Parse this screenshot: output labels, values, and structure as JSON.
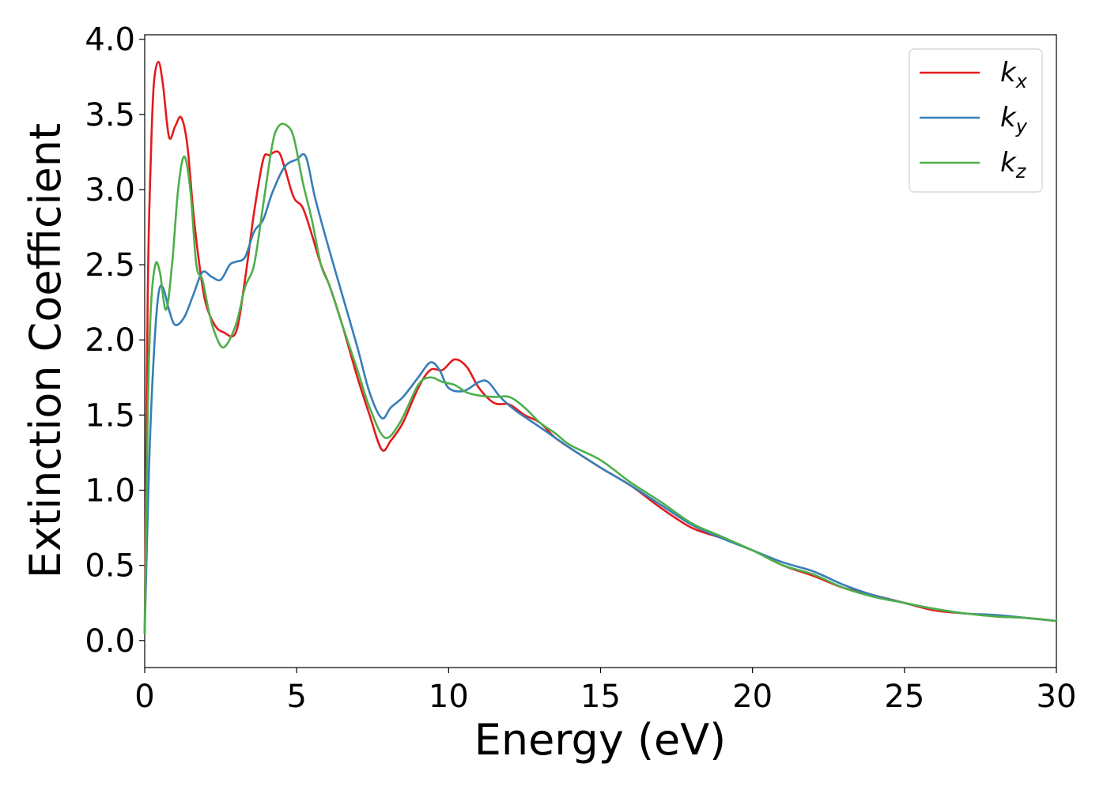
{
  "chart_data": {
    "type": "line",
    "xlabel": "Energy (eV)",
    "ylabel": "Extinction Coefficient",
    "xlim": [
      0,
      30
    ],
    "ylim": [
      -0.18,
      4.03
    ],
    "xticks": [
      0,
      5,
      10,
      15,
      20,
      25,
      30
    ],
    "xtick_labels": [
      "0",
      "5",
      "10",
      "15",
      "20",
      "25",
      "30"
    ],
    "yticks": [
      0.0,
      0.5,
      1.0,
      1.5,
      2.0,
      2.5,
      3.0,
      3.5,
      4.0
    ],
    "ytick_labels": [
      "0.0",
      "0.5",
      "1.0",
      "1.5",
      "2.0",
      "2.5",
      "3.0",
      "3.5",
      "4.0"
    ],
    "grid": false,
    "legend_position": "top-right",
    "series": [
      {
        "name": "k_x",
        "label_base": "k",
        "label_sub": "x",
        "color": "#e41a1c",
        "x": [
          0,
          0.1,
          0.2,
          0.3,
          0.45,
          0.6,
          0.8,
          1.0,
          1.2,
          1.4,
          1.6,
          1.8,
          2.0,
          2.3,
          2.6,
          3.0,
          3.3,
          3.6,
          3.9,
          4.1,
          4.4,
          4.6,
          4.9,
          5.2,
          5.5,
          5.8,
          6.1,
          6.5,
          7.0,
          7.4,
          7.8,
          8.1,
          8.5,
          9.0,
          9.4,
          9.8,
          10.2,
          10.6,
          11.0,
          11.5,
          12.0,
          12.5,
          13.0,
          13.5,
          14.0,
          15.0,
          16.0,
          17.0,
          18.0,
          19.0,
          20.0,
          21.0,
          22.0,
          23.0,
          24.0,
          25.0,
          26.0,
          27.0,
          28.0,
          29.0,
          30.0
        ],
        "y": [
          0.05,
          2.3,
          3.2,
          3.7,
          3.85,
          3.7,
          3.35,
          3.42,
          3.48,
          3.3,
          2.85,
          2.5,
          2.25,
          2.1,
          2.05,
          2.05,
          2.4,
          2.85,
          3.2,
          3.23,
          3.25,
          3.15,
          2.95,
          2.88,
          2.7,
          2.5,
          2.35,
          2.1,
          1.75,
          1.5,
          1.27,
          1.33,
          1.45,
          1.68,
          1.8,
          1.8,
          1.87,
          1.82,
          1.68,
          1.58,
          1.57,
          1.5,
          1.45,
          1.35,
          1.28,
          1.15,
          1.03,
          0.88,
          0.75,
          0.68,
          0.6,
          0.5,
          0.43,
          0.35,
          0.3,
          0.25,
          0.2,
          0.18,
          0.16,
          0.15,
          0.13
        ]
      },
      {
        "name": "k_y",
        "label_base": "k",
        "label_sub": "y",
        "color": "#377eb8",
        "x": [
          0,
          0.15,
          0.3,
          0.45,
          0.6,
          0.8,
          1.0,
          1.3,
          1.6,
          1.9,
          2.2,
          2.5,
          2.8,
          3.0,
          3.3,
          3.6,
          3.9,
          4.2,
          4.6,
          5.0,
          5.3,
          5.6,
          6.0,
          6.5,
          7.0,
          7.4,
          7.8,
          8.1,
          8.5,
          9.0,
          9.4,
          9.7,
          10.0,
          10.5,
          11.0,
          11.3,
          11.7,
          12.2,
          13.0,
          14.0,
          15.0,
          16.0,
          17.0,
          18.0,
          19.0,
          20.0,
          21.0,
          22.0,
          23.0,
          24.0,
          25.0,
          26.0,
          27.0,
          28.0,
          29.0,
          30.0
        ],
        "y": [
          0.05,
          1.2,
          1.9,
          2.3,
          2.35,
          2.2,
          2.1,
          2.15,
          2.3,
          2.45,
          2.42,
          2.4,
          2.5,
          2.52,
          2.55,
          2.72,
          2.8,
          2.98,
          3.15,
          3.2,
          3.22,
          2.95,
          2.65,
          2.3,
          1.95,
          1.65,
          1.48,
          1.55,
          1.62,
          1.75,
          1.85,
          1.8,
          1.68,
          1.66,
          1.72,
          1.72,
          1.62,
          1.53,
          1.42,
          1.28,
          1.15,
          1.03,
          0.9,
          0.77,
          0.68,
          0.6,
          0.52,
          0.46,
          0.37,
          0.3,
          0.25,
          0.21,
          0.18,
          0.17,
          0.15,
          0.13
        ]
      },
      {
        "name": "k_z",
        "label_base": "k",
        "label_sub": "z",
        "color": "#4daf4a",
        "x": [
          0,
          0.1,
          0.2,
          0.35,
          0.5,
          0.7,
          0.9,
          1.1,
          1.3,
          1.5,
          1.7,
          1.9,
          2.1,
          2.3,
          2.6,
          3.0,
          3.3,
          3.6,
          3.9,
          4.2,
          4.4,
          4.65,
          4.9,
          5.2,
          5.5,
          5.8,
          6.1,
          6.5,
          7.0,
          7.4,
          7.9,
          8.4,
          9.0,
          9.4,
          9.8,
          10.2,
          10.6,
          11.0,
          11.5,
          12.0,
          12.5,
          13.0,
          13.5,
          14.0,
          15.0,
          16.0,
          17.0,
          18.0,
          19.0,
          20.0,
          21.0,
          22.0,
          23.0,
          24.0,
          25.0,
          26.0,
          27.0,
          28.0,
          29.0,
          30.0
        ],
        "y": [
          0.05,
          1.5,
          2.2,
          2.5,
          2.45,
          2.2,
          2.5,
          3.0,
          3.22,
          3.0,
          2.5,
          2.4,
          2.2,
          2.05,
          1.95,
          2.1,
          2.35,
          2.5,
          2.9,
          3.3,
          3.42,
          3.43,
          3.35,
          3.05,
          2.8,
          2.5,
          2.35,
          2.1,
          1.8,
          1.55,
          1.35,
          1.45,
          1.7,
          1.75,
          1.72,
          1.7,
          1.65,
          1.63,
          1.62,
          1.62,
          1.55,
          1.45,
          1.38,
          1.3,
          1.2,
          1.05,
          0.92,
          0.78,
          0.69,
          0.6,
          0.5,
          0.44,
          0.35,
          0.29,
          0.25,
          0.21,
          0.18,
          0.16,
          0.15,
          0.13
        ]
      }
    ]
  }
}
